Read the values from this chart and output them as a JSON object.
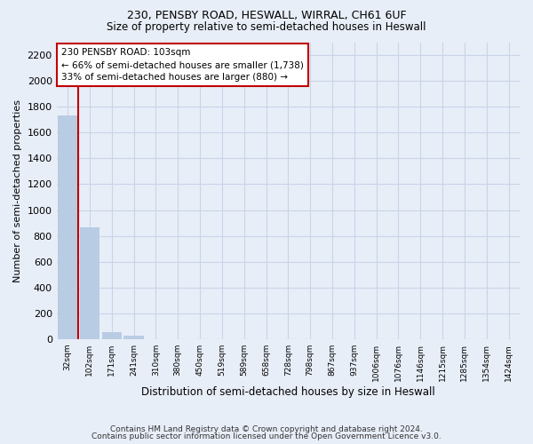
{
  "title": "230, PENSBY ROAD, HESWALL, WIRRAL, CH61 6UF",
  "subtitle": "Size of property relative to semi-detached houses in Heswall",
  "xlabel": "Distribution of semi-detached houses by size in Heswall",
  "ylabel": "Number of semi-detached properties",
  "footer_line1": "Contains HM Land Registry data © Crown copyright and database right 2024.",
  "footer_line2": "Contains public sector information licensed under the Open Government Licence v3.0.",
  "bin_labels": [
    "32sqm",
    "102sqm",
    "171sqm",
    "241sqm",
    "310sqm",
    "380sqm",
    "450sqm",
    "519sqm",
    "589sqm",
    "658sqm",
    "728sqm",
    "798sqm",
    "867sqm",
    "937sqm",
    "1006sqm",
    "1076sqm",
    "1146sqm",
    "1215sqm",
    "1285sqm",
    "1354sqm",
    "1424sqm"
  ],
  "bar_values": [
    1730,
    865,
    55,
    25,
    0,
    0,
    0,
    0,
    0,
    0,
    0,
    0,
    0,
    0,
    0,
    0,
    0,
    0,
    0,
    0,
    0
  ],
  "bar_color": "#b8cce4",
  "property_line_x": 0.5,
  "annotation_text": "230 PENSBY ROAD: 103sqm\n← 66% of semi-detached houses are smaller (1,738)\n33% of semi-detached houses are larger (880) →",
  "annotation_box_color": "#ffffff",
  "annotation_box_edge": "#c00000",
  "ylim": [
    0,
    2300
  ],
  "yticks": [
    0,
    200,
    400,
    600,
    800,
    1000,
    1200,
    1400,
    1600,
    1800,
    2000,
    2200
  ],
  "grid_color": "#c8d4e8",
  "bg_color": "#e8eef8",
  "plot_bg_color": "#e8eef8",
  "title_fontsize": 9,
  "subtitle_fontsize": 8.5
}
